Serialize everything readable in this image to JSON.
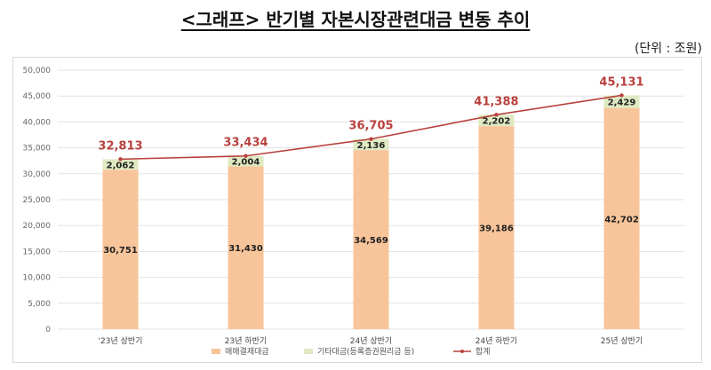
{
  "header": {
    "title": "<그래프> 반기별 자본시장관련대금 변동 추이",
    "unit": "(단위 : 조원)"
  },
  "colors": {
    "trade": "#f8c49a",
    "other": "#dfeac2",
    "total_line": "#b8403c",
    "gridline": "#e3e3e3"
  },
  "chart_data": {
    "type": "bar",
    "stacked": true,
    "title": "",
    "xlabel": "",
    "ylabel": "",
    "categories": [
      "'23년 상반기",
      "23년 하반기",
      "24년 상반기",
      "24년 하반기",
      "25년 상반기"
    ],
    "series": [
      {
        "name": "매매결제대금",
        "values": [
          30751,
          31430,
          34569,
          39186,
          42702
        ],
        "label_texts": [
          "30,751",
          "31,430",
          "34,569",
          "39,186",
          "42,702"
        ]
      },
      {
        "name": "기타대금(등록증권원리금 등)",
        "values": [
          2062,
          2004,
          2136,
          2202,
          2429
        ],
        "label_texts": [
          "2,062",
          "2,004",
          "2,136",
          "2,202",
          "2,429"
        ]
      },
      {
        "name": "합계",
        "type": "line",
        "values": [
          32813,
          33434,
          36705,
          41388,
          45131
        ],
        "label_texts": [
          "32,813",
          "33,434",
          "36,705",
          "41,388",
          "45,131"
        ]
      }
    ],
    "ylim": [
      0,
      50000
    ],
    "yticks": [
      0,
      5000,
      10000,
      15000,
      20000,
      25000,
      30000,
      35000,
      40000,
      45000,
      50000
    ],
    "ytick_labels": [
      "0",
      "5,000",
      "10,000",
      "15,000",
      "20,000",
      "25,000",
      "30,000",
      "35,000",
      "40,000",
      "45,000",
      "50,000"
    ],
    "grid": true,
    "legend": "bottom"
  }
}
